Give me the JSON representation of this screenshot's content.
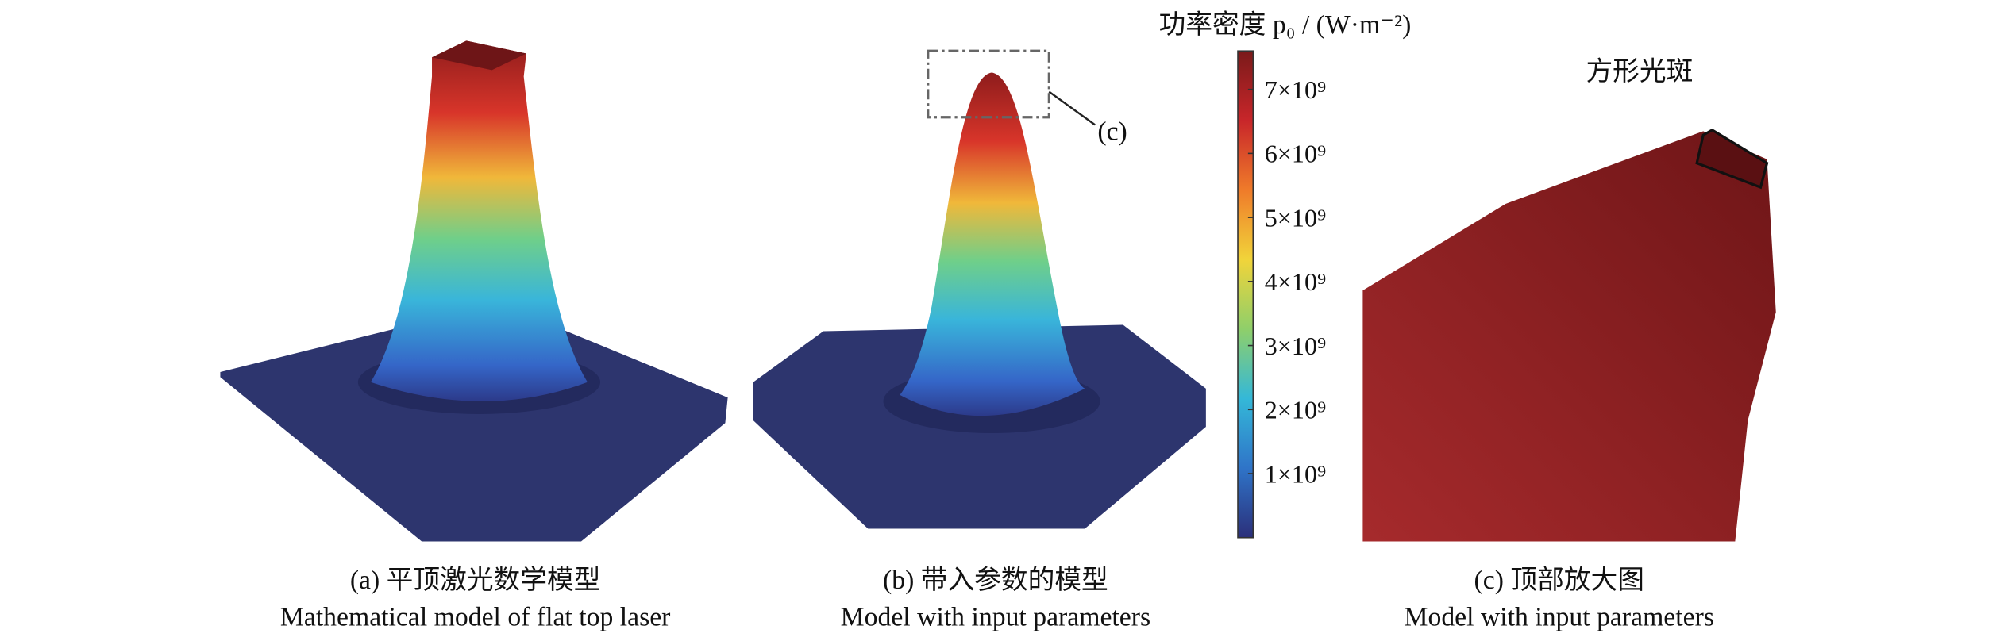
{
  "panels": [
    {
      "caption_cn": "(a) 平顶激光数学模型",
      "caption_en": "Mathematical model of flat top laser"
    },
    {
      "caption_cn": "(b) 带入参数的模型",
      "caption_en": "Model with input parameters",
      "callout": "(c)"
    },
    {
      "caption_cn": "(c) 顶部放大图",
      "caption_en": "Model with input parameters",
      "annotation": "方形光斑"
    }
  ],
  "colorbar": {
    "title": "功率密度 p₀ / (W·m⁻²)",
    "range": [
      0,
      7600000000
    ],
    "colors": [
      "#2b2f7a",
      "#2f74c8",
      "#34b8d8",
      "#8fcf6a",
      "#f1d43a",
      "#ef7b2a",
      "#c8262a",
      "#7a1a1a"
    ],
    "ticks": [
      {
        "value": 1000000000,
        "label": "1×10⁹"
      },
      {
        "value": 2000000000,
        "label": "2×10⁹"
      },
      {
        "value": 3000000000,
        "label": "3×10⁹"
      },
      {
        "value": 4000000000,
        "label": "4×10⁹"
      },
      {
        "value": 5000000000,
        "label": "5×10⁹"
      },
      {
        "value": 6000000000,
        "label": "6×10⁹"
      },
      {
        "value": 7000000000,
        "label": "7×10⁹"
      }
    ]
  }
}
